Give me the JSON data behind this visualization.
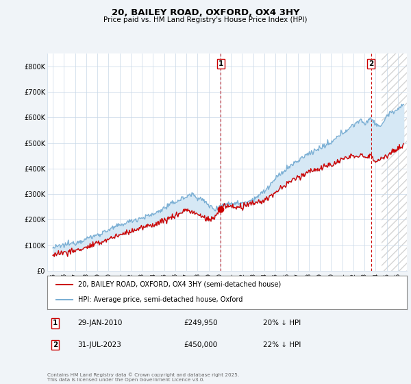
{
  "title": "20, BAILEY ROAD, OXFORD, OX4 3HY",
  "subtitle": "Price paid vs. HM Land Registry's House Price Index (HPI)",
  "ylim": [
    0,
    850000
  ],
  "yticks": [
    0,
    100000,
    200000,
    300000,
    400000,
    500000,
    600000,
    700000,
    800000
  ],
  "ytick_labels": [
    "£0",
    "£100K",
    "£200K",
    "£300K",
    "£400K",
    "£500K",
    "£600K",
    "£700K",
    "£800K"
  ],
  "hpi_color": "#7bafd4",
  "hpi_fill_color": "#d6e8f5",
  "price_color": "#cc0000",
  "marker1_date_x": 2010.08,
  "marker1_price": 249950,
  "marker2_date_x": 2023.58,
  "marker2_price": 450000,
  "marker1_label": "1",
  "marker2_label": "2",
  "legend_price_label": "20, BAILEY ROAD, OXFORD, OX4 3HY (semi-detached house)",
  "legend_hpi_label": "HPI: Average price, semi-detached house, Oxford",
  "footer": "Contains HM Land Registry data © Crown copyright and database right 2025.\nThis data is licensed under the Open Government Licence v3.0.",
  "background_color": "#f0f4f8",
  "plot_bg_color": "#ffffff",
  "grid_color": "#c8d8e8",
  "xlim_left": 1994.5,
  "xlim_right": 2026.8
}
